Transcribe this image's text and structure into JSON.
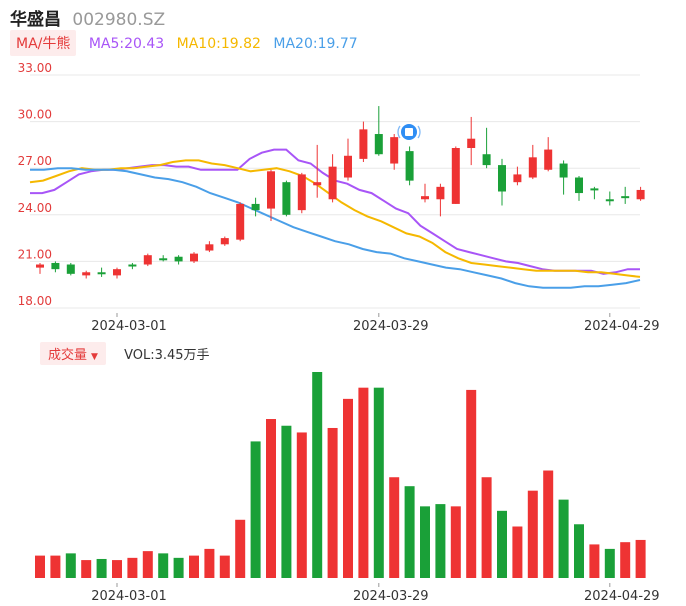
{
  "header": {
    "name": "华盛昌",
    "code": "002980.SZ"
  },
  "ma_toggle": "MA/牛熊",
  "ma_legend": [
    {
      "label": "MA5:20.43",
      "color": "#a855f7"
    },
    {
      "label": "MA10:19.82",
      "color": "#f5b800"
    },
    {
      "label": "MA20:19.77",
      "color": "#4a9fe8"
    }
  ],
  "volume": {
    "toggle": "成交量",
    "caret": "▼",
    "label": "VOL:3.45万手"
  },
  "colors": {
    "up": "#ee3333",
    "down": "#1aa038",
    "grid": "#e8e8e8",
    "axis_text": "#e23b3b",
    "date_text": "#333333"
  },
  "badge_icon": "news-marker-icon",
  "chart_data": [
    {
      "type": "candlestick",
      "y_ticks": [
        "33.00",
        "30.00",
        "27.00",
        "24.00",
        "21.00",
        "18.00"
      ],
      "ylim": [
        18,
        33
      ],
      "x_labels": [
        {
          "label": "2024-03-01",
          "index": 5
        },
        {
          "label": "2024-03-29",
          "index": 22
        },
        {
          "label": "2024-04-29",
          "index": 37
        }
      ],
      "candles": [
        {
          "o": 20.6,
          "c": 20.8,
          "h": 20.9,
          "l": 20.2
        },
        {
          "o": 20.9,
          "c": 20.5,
          "h": 21.0,
          "l": 20.3
        },
        {
          "o": 20.8,
          "c": 20.2,
          "h": 20.9,
          "l": 20.1
        },
        {
          "o": 20.1,
          "c": 20.3,
          "h": 20.4,
          "l": 19.9
        },
        {
          "o": 20.3,
          "c": 20.2,
          "h": 20.6,
          "l": 20.0
        },
        {
          "o": 20.1,
          "c": 20.5,
          "h": 20.6,
          "l": 19.9
        },
        {
          "o": 20.8,
          "c": 20.7,
          "h": 20.9,
          "l": 20.5
        },
        {
          "o": 20.8,
          "c": 21.4,
          "h": 21.5,
          "l": 20.7
        },
        {
          "o": 21.2,
          "c": 21.1,
          "h": 21.4,
          "l": 21.0
        },
        {
          "o": 21.3,
          "c": 21.0,
          "h": 21.4,
          "l": 20.8
        },
        {
          "o": 21.0,
          "c": 21.5,
          "h": 21.6,
          "l": 20.9
        },
        {
          "o": 21.7,
          "c": 22.1,
          "h": 22.3,
          "l": 21.6
        },
        {
          "o": 22.1,
          "c": 22.5,
          "h": 22.6,
          "l": 22.0
        },
        {
          "o": 22.4,
          "c": 24.7,
          "h": 24.8,
          "l": 22.3
        },
        {
          "o": 24.7,
          "c": 24.3,
          "h": 25.1,
          "l": 23.9
        },
        {
          "o": 24.4,
          "c": 26.8,
          "h": 26.9,
          "l": 23.6
        },
        {
          "o": 26.1,
          "c": 24.0,
          "h": 26.2,
          "l": 23.9
        },
        {
          "o": 24.3,
          "c": 26.6,
          "h": 26.7,
          "l": 24.1
        },
        {
          "o": 25.9,
          "c": 26.1,
          "h": 28.5,
          "l": 25.1
        },
        {
          "o": 25.0,
          "c": 27.1,
          "h": 27.9,
          "l": 24.8
        },
        {
          "o": 26.4,
          "c": 27.8,
          "h": 28.9,
          "l": 26.2
        },
        {
          "o": 27.6,
          "c": 29.5,
          "h": 30.0,
          "l": 27.4
        },
        {
          "o": 29.2,
          "c": 27.9,
          "h": 31.0,
          "l": 27.8
        },
        {
          "o": 27.3,
          "c": 29.0,
          "h": 29.2,
          "l": 26.9
        },
        {
          "o": 28.1,
          "c": 26.2,
          "h": 28.4,
          "l": 25.9
        },
        {
          "o": 25.0,
          "c": 25.2,
          "h": 26.0,
          "l": 24.8
        },
        {
          "o": 25.0,
          "c": 25.8,
          "h": 26.0,
          "l": 23.9
        },
        {
          "o": 24.7,
          "c": 28.3,
          "h": 28.4,
          "l": 24.7
        },
        {
          "o": 28.3,
          "c": 28.9,
          "h": 30.3,
          "l": 27.2
        },
        {
          "o": 27.9,
          "c": 27.2,
          "h": 29.6,
          "l": 27.0
        },
        {
          "o": 27.2,
          "c": 25.5,
          "h": 27.6,
          "l": 24.6
        },
        {
          "o": 26.1,
          "c": 26.6,
          "h": 27.1,
          "l": 25.9
        },
        {
          "o": 26.4,
          "c": 27.7,
          "h": 28.5,
          "l": 26.3
        },
        {
          "o": 26.9,
          "c": 28.2,
          "h": 29.0,
          "l": 26.8
        },
        {
          "o": 27.3,
          "c": 26.4,
          "h": 27.5,
          "l": 25.3
        },
        {
          "o": 26.4,
          "c": 25.4,
          "h": 26.5,
          "l": 24.9
        },
        {
          "o": 25.7,
          "c": 25.6,
          "h": 25.8,
          "l": 25.0
        },
        {
          "o": 25.0,
          "c": 24.9,
          "h": 25.5,
          "l": 24.6
        },
        {
          "o": 25.2,
          "c": 25.1,
          "h": 25.8,
          "l": 24.7
        },
        {
          "o": 25.0,
          "c": 25.6,
          "h": 25.8,
          "l": 24.9
        }
      ],
      "series": [
        {
          "key": "ma5",
          "color": "#a855f7",
          "values": [
            25.4,
            25.4,
            25.6,
            26.1,
            26.6,
            26.8,
            26.9,
            26.9,
            27.0,
            27.1,
            27.2,
            27.2,
            27.1,
            27.1,
            26.9,
            26.9,
            26.9,
            26.9,
            27.6,
            28.0,
            28.2,
            28.2,
            27.5,
            27.3,
            26.7,
            26.2,
            26.0,
            25.6,
            25.4,
            24.9,
            24.4,
            24.1,
            23.3,
            22.8,
            22.3,
            21.8,
            21.6,
            21.4,
            21.2,
            21.0,
            20.9,
            20.7,
            20.5,
            20.4,
            20.4,
            20.4,
            20.4,
            20.2,
            20.3,
            20.5,
            20.5
          ]
        },
        {
          "key": "ma10",
          "color": "#f5b800",
          "values": [
            26.1,
            26.2,
            26.5,
            26.8,
            27.0,
            26.9,
            26.9,
            27.0,
            27.0,
            27.1,
            27.2,
            27.4,
            27.5,
            27.5,
            27.3,
            27.2,
            27.0,
            26.8,
            26.9,
            27.0,
            26.8,
            26.5,
            26.0,
            25.4,
            24.8,
            24.3,
            23.9,
            23.6,
            23.2,
            22.8,
            22.6,
            22.2,
            21.6,
            21.2,
            20.9,
            20.8,
            20.7,
            20.6,
            20.5,
            20.4,
            20.4,
            20.4,
            20.4,
            20.3,
            20.3,
            20.2,
            20.1,
            20.0
          ]
        },
        {
          "key": "ma20",
          "color": "#4a9fe8",
          "values": [
            26.9,
            26.9,
            27.0,
            27.0,
            26.9,
            26.9,
            26.9,
            26.8,
            26.6,
            26.4,
            26.3,
            26.1,
            25.8,
            25.4,
            25.1,
            24.8,
            24.4,
            24.0,
            23.6,
            23.2,
            22.9,
            22.6,
            22.3,
            22.1,
            21.8,
            21.6,
            21.5,
            21.2,
            21.0,
            20.8,
            20.6,
            20.5,
            20.3,
            20.1,
            19.9,
            19.6,
            19.4,
            19.3,
            19.3,
            19.3,
            19.4,
            19.4,
            19.5,
            19.6,
            19.8
          ]
        }
      ]
    },
    {
      "type": "bar",
      "name": "volume",
      "values": [
        1.0,
        1.0,
        1.1,
        0.8,
        0.85,
        0.8,
        0.9,
        1.2,
        1.1,
        0.9,
        1.0,
        1.3,
        1.0,
        2.6,
        6.1,
        7.1,
        6.8,
        6.5,
        9.2,
        6.7,
        8.0,
        8.5,
        8.5,
        4.5,
        4.1,
        3.2,
        3.3,
        3.2,
        8.4,
        4.5,
        3.0,
        2.3,
        3.9,
        4.8,
        3.5,
        2.4,
        1.5,
        1.3,
        1.6,
        1.7
      ],
      "colors": [
        "up",
        "up",
        "down",
        "up",
        "down",
        "up",
        "up",
        "up",
        "down",
        "down",
        "up",
        "up",
        "up",
        "up",
        "down",
        "up",
        "down",
        "up",
        "down",
        "up",
        "up",
        "up",
        "down",
        "up",
        "down",
        "down",
        "down",
        "up",
        "up",
        "up",
        "down",
        "up",
        "up",
        "up",
        "down",
        "down",
        "up",
        "down",
        "up",
        "up"
      ]
    }
  ]
}
